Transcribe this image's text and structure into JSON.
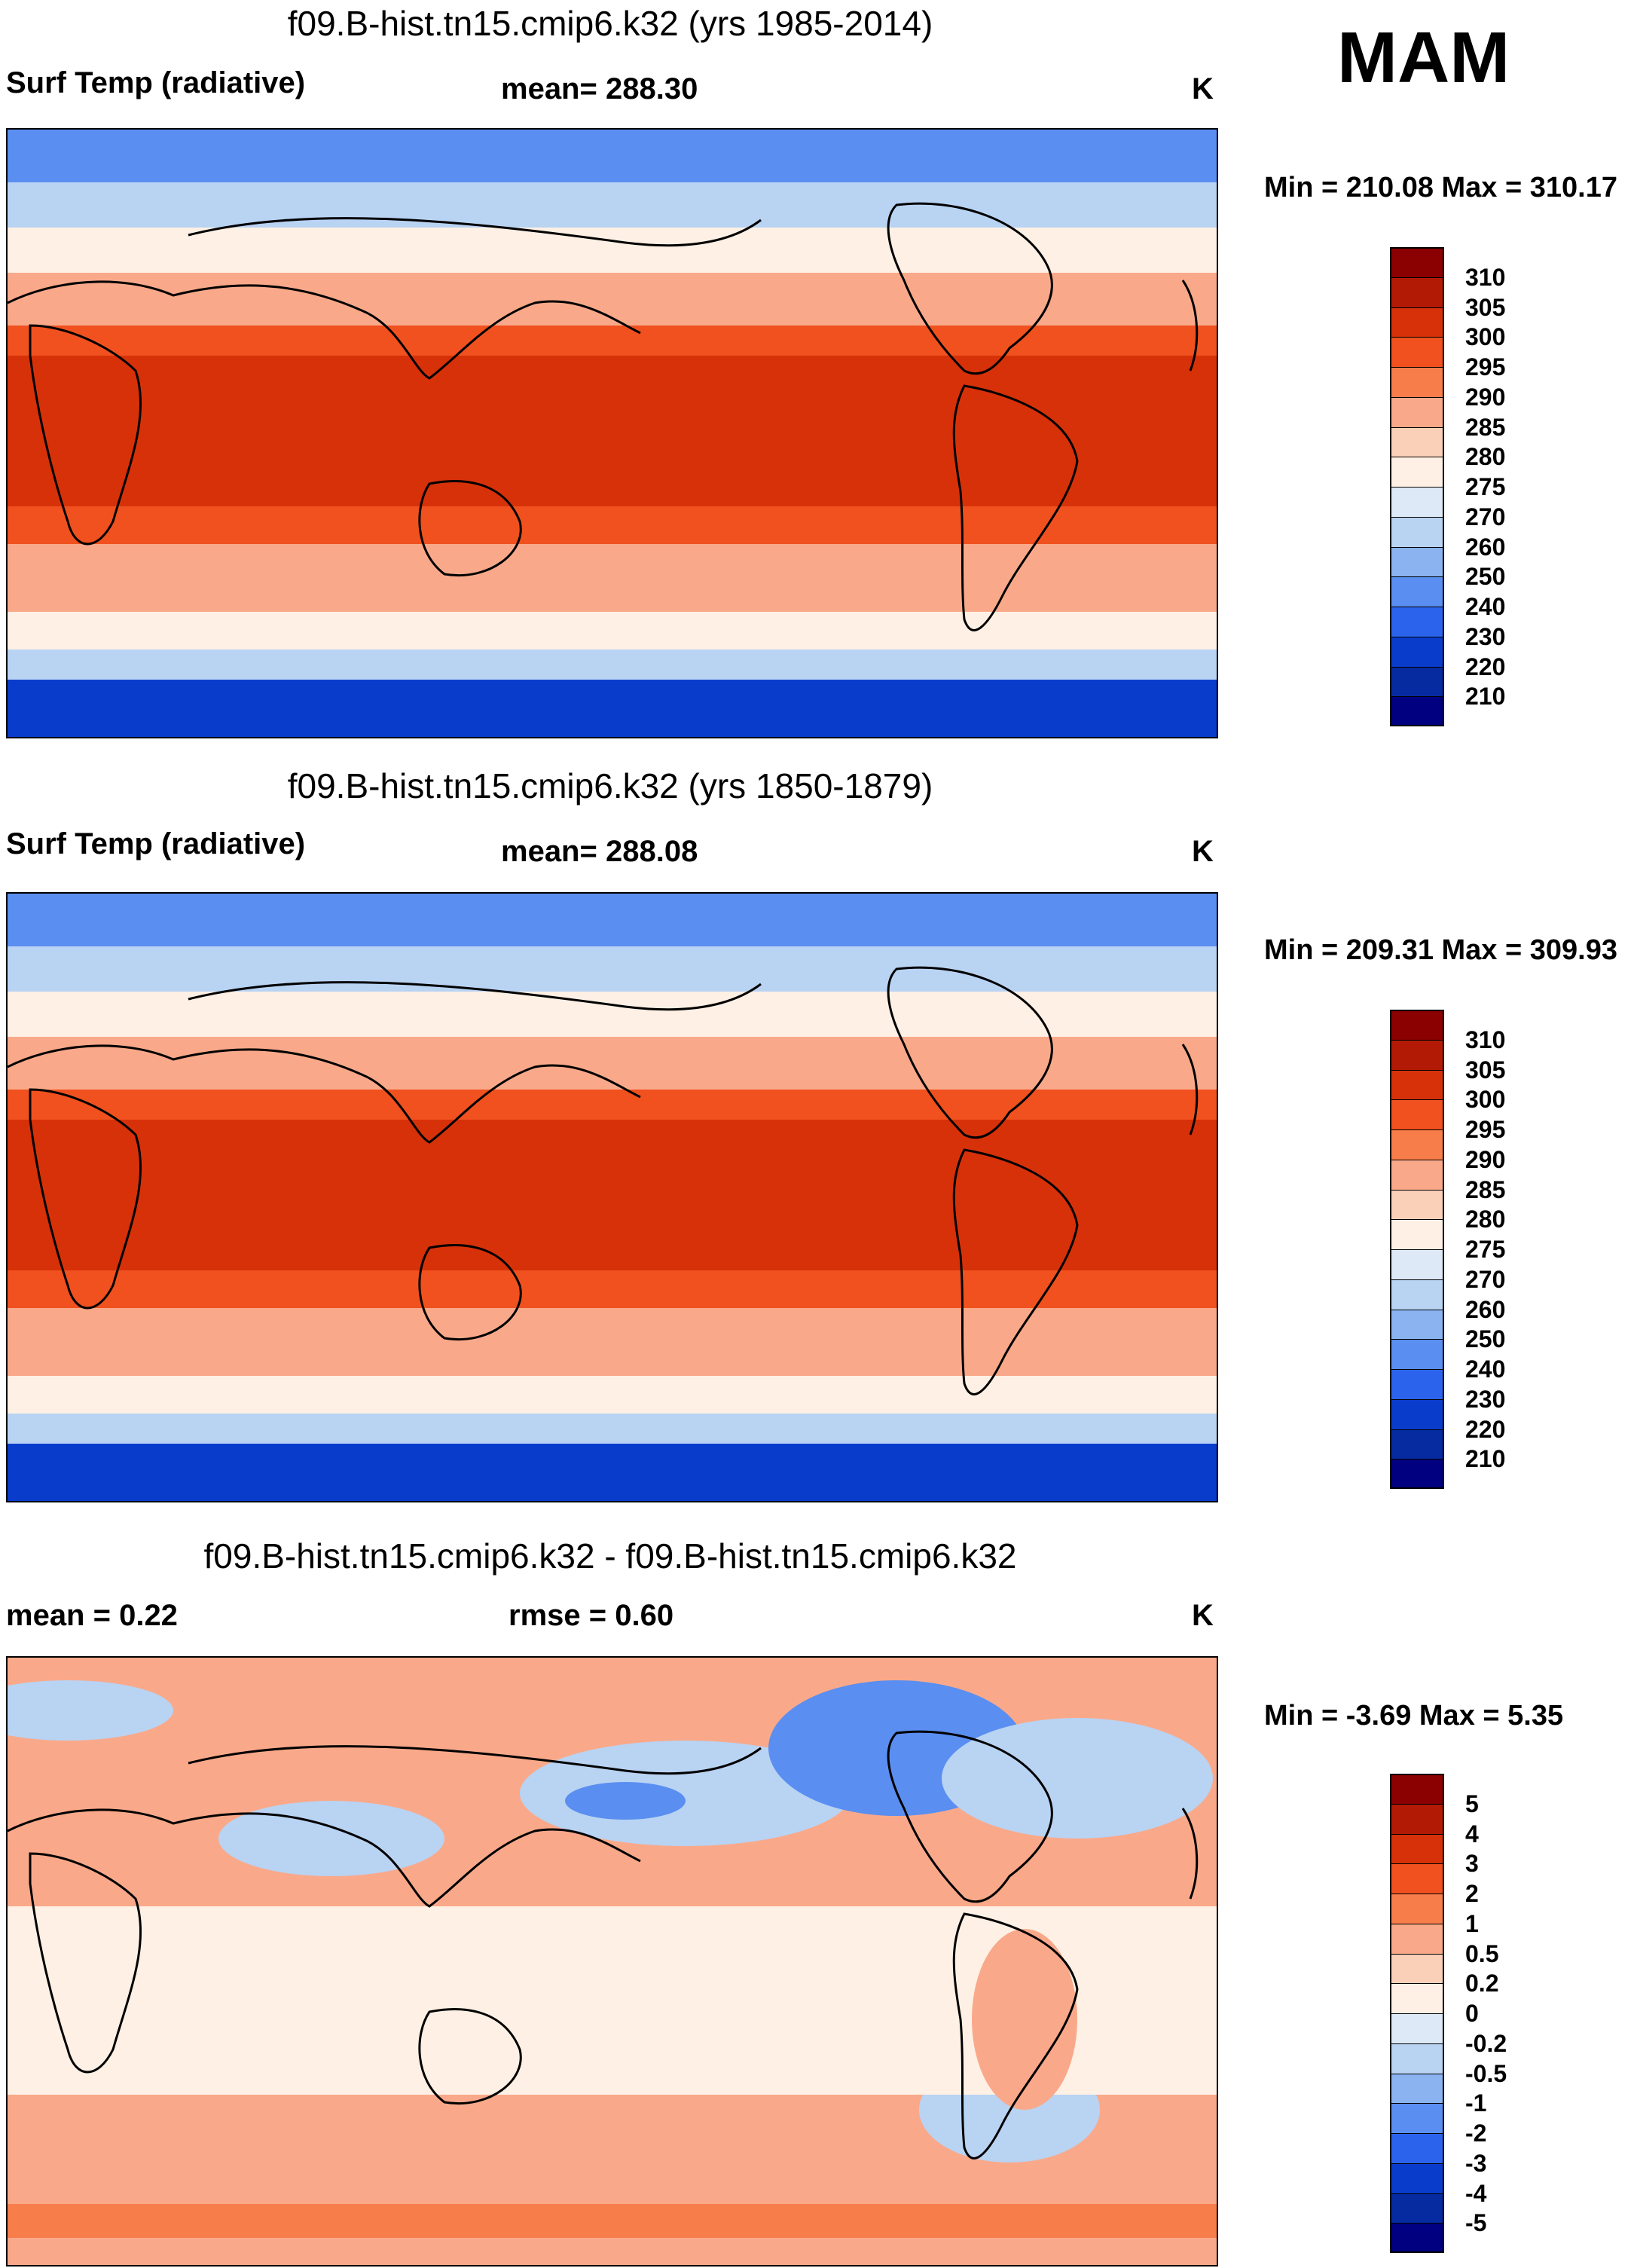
{
  "season": "MAM",
  "panels": [
    {
      "title": "f09.B-hist.tn15.cmip6.k32 (yrs 1985-2014)",
      "left_label": "Surf Temp (radiative)",
      "center_label": "mean= 288.30",
      "units": "K",
      "minmax": "Min = 210.08 Max = 310.17"
    },
    {
      "title": "f09.B-hist.tn15.cmip6.k32 (yrs 1850-1879)",
      "left_label": "Surf Temp (radiative)",
      "center_label": "mean= 288.08",
      "units": "K",
      "minmax": "Min = 209.31 Max = 309.93"
    },
    {
      "title": "f09.B-hist.tn15.cmip6.k32 - f09.B-hist.tn15.cmip6.k32",
      "left_label": "mean =   0.22",
      "center_label": "rmse =   0.60",
      "units": "K",
      "minmax": "Min =  -3.69 Max =   5.35"
    }
  ],
  "colorbars": {
    "temperature": {
      "labels": [
        "310",
        "305",
        "300",
        "295",
        "290",
        "285",
        "280",
        "275",
        "270",
        "260",
        "250",
        "240",
        "230",
        "220",
        "210"
      ],
      "colors": [
        "#8b0000",
        "#b21a06",
        "#d7310a",
        "#f0511f",
        "#f77d4a",
        "#f9a98a",
        "#fbd0b8",
        "#fef0e4",
        "#dde9f7",
        "#b9d3f3",
        "#8bb3f0",
        "#5a8ef0",
        "#2c63ec",
        "#0a3ccc",
        "#062aa0",
        "#000080"
      ]
    },
    "difference": {
      "labels": [
        "5",
        "4",
        "3",
        "2",
        "1",
        "0.5",
        "0.2",
        "0",
        "-0.2",
        "-0.5",
        "-1",
        "-2",
        "-3",
        "-4",
        "-5"
      ],
      "colors": [
        "#8b0000",
        "#b21a06",
        "#d7310a",
        "#f0511f",
        "#f77d4a",
        "#f9a98a",
        "#fbd0b8",
        "#fef0e4",
        "#dde9f7",
        "#b9d3f3",
        "#8bb3f0",
        "#5a8ef0",
        "#2c63ec",
        "#0a3ccc",
        "#062aa0",
        "#000080"
      ]
    }
  },
  "map_colors": {
    "t_pole": "#0a3ccc",
    "t_cold": "#5a8ef0",
    "t_cool": "#b9d3f3",
    "t_neutral": "#fef0e4",
    "t_mild": "#f9a98a",
    "t_warm": "#f0511f",
    "t_hot": "#d7310a",
    "d_pos": "#f9a98a",
    "d_pos2": "#f77d4a",
    "d_neutral": "#fef0e4",
    "d_neg": "#b9d3f3",
    "d_neg2": "#5a8ef0"
  }
}
